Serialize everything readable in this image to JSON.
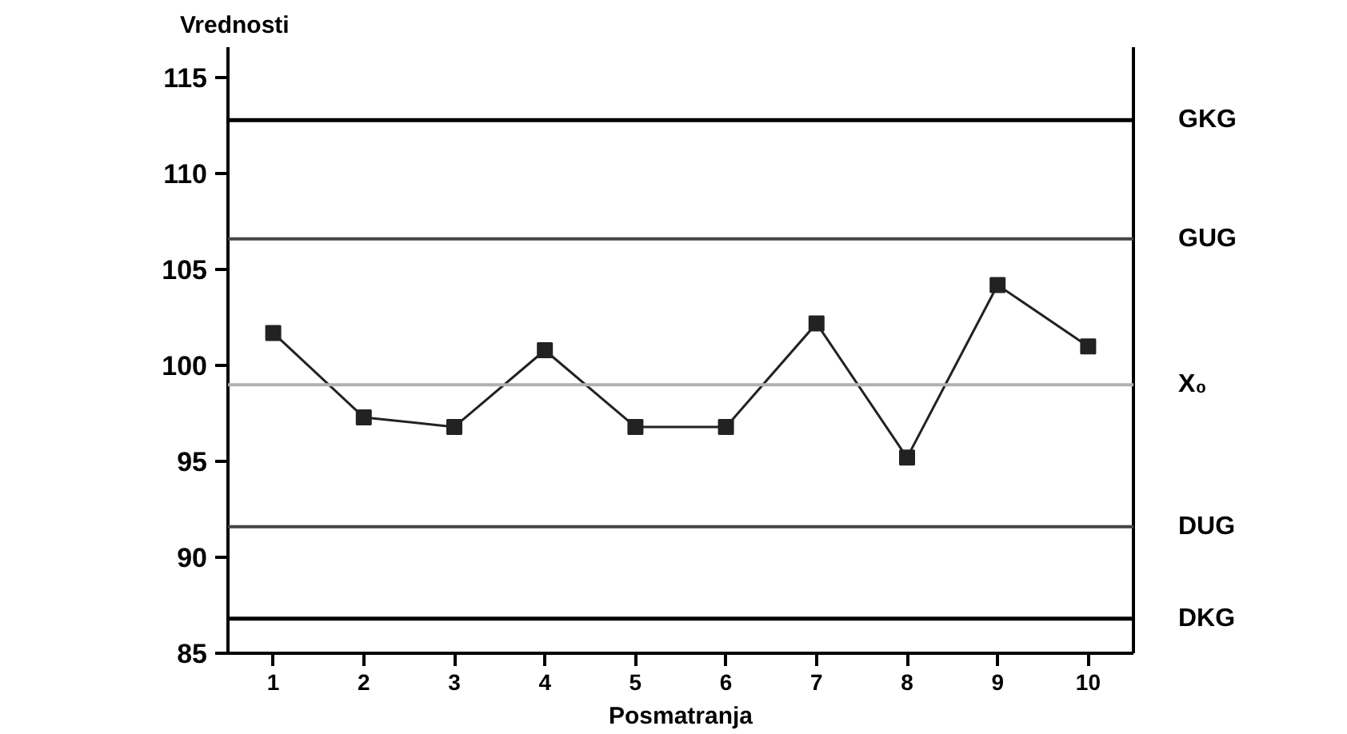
{
  "chart_data": {
    "type": "line",
    "ylabel": "Vrednosti",
    "xlabel": "Posmatranja",
    "x": [
      1,
      2,
      3,
      4,
      5,
      6,
      7,
      8,
      9,
      10
    ],
    "series": [
      {
        "color": "#222222",
        "values": [
          101.7,
          97.3,
          96.8,
          100.8,
          96.8,
          96.8,
          102.2,
          95.2,
          104.2,
          101.0
        ]
      }
    ],
    "marker": "square",
    "xlim": [
      0.5,
      10.5
    ],
    "xticks": [
      1,
      2,
      3,
      4,
      5,
      6,
      7,
      8,
      9,
      10
    ],
    "ylim": [
      85,
      116.6
    ],
    "yticks": [
      85,
      90,
      95,
      100,
      105,
      110,
      115
    ],
    "ref_lines": [
      {
        "axis": "y",
        "value": 112.8,
        "label": "GKG",
        "color": "#000000"
      },
      {
        "axis": "y",
        "value": 106.6,
        "label": "GUG",
        "color": "#444444"
      },
      {
        "axis": "y",
        "value": 99.0,
        "label": "X₀",
        "color": "#b0b0b0"
      },
      {
        "axis": "y",
        "value": 91.6,
        "label": "DUG",
        "color": "#444444"
      },
      {
        "axis": "y",
        "value": 86.8,
        "label": "DKG",
        "color": "#000000"
      }
    ],
    "grid": false
  }
}
